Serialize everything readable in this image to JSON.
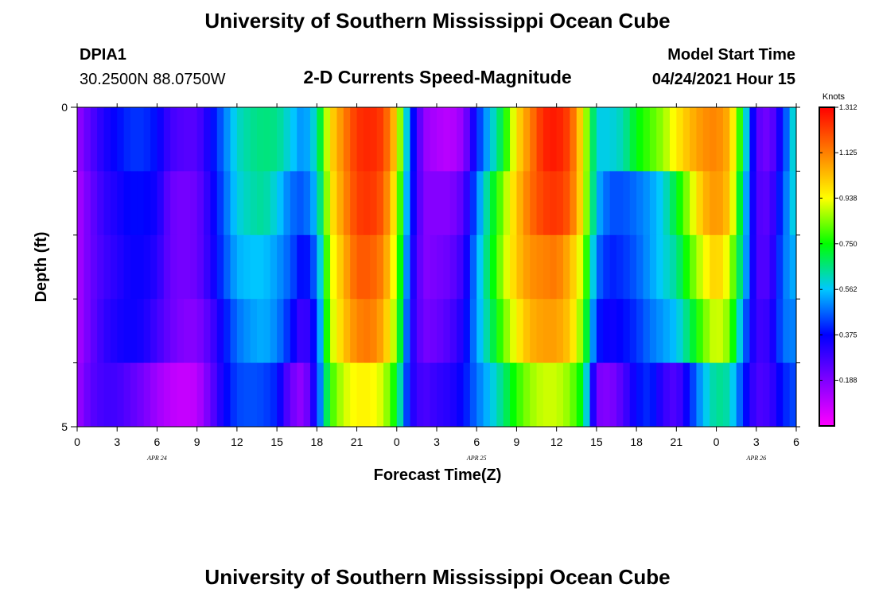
{
  "header": {
    "title": "University of Southern Mississippi Ocean Cube",
    "station": "DPIA1",
    "coords": "30.2500N  88.0750W",
    "model_start_label": "Model Start Time",
    "model_start_value": "04/24/2021 Hour 15"
  },
  "footer": {
    "title": "University of Southern Mississippi Ocean Cube"
  },
  "chart_data": {
    "type": "heatmap",
    "title": "2-D Currents Speed-Magnitude",
    "xlabel": "Forecast Time(Z)",
    "ylabel": "Depth (ft)",
    "x_tick_labels": [
      "0",
      "3",
      "6",
      "9",
      "12",
      "15",
      "18",
      "21",
      "0",
      "3",
      "6",
      "9",
      "12",
      "15",
      "18",
      "21",
      "0",
      "3",
      "6"
    ],
    "date_labels": [
      {
        "label": "APR 24",
        "tick_index": 2
      },
      {
        "label": "APR 25",
        "tick_index": 10
      },
      {
        "label": "APR 26",
        "tick_index": 17
      }
    ],
    "y_tick_labels": [
      "0",
      "5"
    ],
    "ylim": [
      0,
      5
    ],
    "xlim_hours": [
      0,
      54
    ],
    "colorbar": {
      "unit": "Knots",
      "min": 0,
      "max": 1.312,
      "tick_labels": [
        "1.312",
        "1.125",
        "0.938",
        "0.750",
        "0.562",
        "0.375",
        "0.188"
      ],
      "tick_values": [
        1.312,
        1.125,
        0.938,
        0.75,
        0.562,
        0.375,
        0.188
      ],
      "colors": [
        "#ff00ff",
        "#8000ff",
        "#0000ff",
        "#00c8ff",
        "#00ff00",
        "#ffff00",
        "#ff8000",
        "#ff0000"
      ]
    },
    "depth_rows": [
      0.5,
      1.5,
      2.5,
      3.5,
      4.5
    ],
    "hours": [
      0,
      1,
      2,
      3,
      4,
      5,
      6,
      7,
      8,
      9,
      10,
      11,
      12,
      13,
      14,
      15,
      16,
      17,
      18,
      19,
      20,
      21,
      22,
      23,
      24,
      25,
      26,
      27,
      28,
      29,
      30,
      31,
      32,
      33,
      34,
      35,
      36,
      37,
      38,
      39,
      40,
      41,
      42,
      43,
      44,
      45,
      46,
      47,
      48,
      49,
      50,
      51,
      52,
      53,
      54
    ],
    "values": [
      [
        0.15,
        0.25,
        0.33,
        0.38,
        0.42,
        0.42,
        0.38,
        0.28,
        0.25,
        0.25,
        0.36,
        0.48,
        0.6,
        0.64,
        0.66,
        0.65,
        0.58,
        0.5,
        0.62,
        0.98,
        1.12,
        1.24,
        1.26,
        1.22,
        0.99,
        0.45,
        0.16,
        0.12,
        0.1,
        0.16,
        0.4,
        0.56,
        0.72,
        0.98,
        1.12,
        1.26,
        1.28,
        1.21,
        0.95,
        0.58,
        0.58,
        0.62,
        0.74,
        0.8,
        0.86,
        0.96,
        1.04,
        1.1,
        1.12,
        1.05,
        0.7,
        0.25,
        0.2,
        0.4,
        0.65
      ],
      [
        0.12,
        0.22,
        0.3,
        0.34,
        0.38,
        0.38,
        0.35,
        0.22,
        0.2,
        0.22,
        0.33,
        0.46,
        0.58,
        0.62,
        0.64,
        0.58,
        0.48,
        0.45,
        0.56,
        0.95,
        1.1,
        1.22,
        1.24,
        1.18,
        0.92,
        0.42,
        0.18,
        0.18,
        0.18,
        0.25,
        0.48,
        0.68,
        0.85,
        1.02,
        1.15,
        1.22,
        1.24,
        1.18,
        0.95,
        0.55,
        0.45,
        0.45,
        0.48,
        0.52,
        0.58,
        0.72,
        0.88,
        1.04,
        1.1,
        1.02,
        0.62,
        0.26,
        0.24,
        0.45,
        0.62
      ],
      [
        0.12,
        0.22,
        0.28,
        0.32,
        0.36,
        0.36,
        0.32,
        0.22,
        0.2,
        0.22,
        0.32,
        0.44,
        0.54,
        0.56,
        0.56,
        0.52,
        0.46,
        0.36,
        0.48,
        0.9,
        1.05,
        1.18,
        1.18,
        1.12,
        0.88,
        0.38,
        0.18,
        0.2,
        0.22,
        0.3,
        0.52,
        0.7,
        0.88,
        1.02,
        1.1,
        1.12,
        1.14,
        1.05,
        0.88,
        0.48,
        0.4,
        0.42,
        0.46,
        0.52,
        0.58,
        0.64,
        0.8,
        0.92,
        1.02,
        0.9,
        0.6,
        0.26,
        0.26,
        0.48,
        0.55
      ],
      [
        0.12,
        0.22,
        0.3,
        0.34,
        0.36,
        0.34,
        0.28,
        0.22,
        0.18,
        0.18,
        0.26,
        0.38,
        0.48,
        0.52,
        0.54,
        0.5,
        0.4,
        0.26,
        0.42,
        0.88,
        1.02,
        1.12,
        1.14,
        1.06,
        0.84,
        0.35,
        0.2,
        0.22,
        0.26,
        0.34,
        0.52,
        0.66,
        0.82,
        0.95,
        1.05,
        1.08,
        1.08,
        1.02,
        0.82,
        0.4,
        0.35,
        0.38,
        0.42,
        0.48,
        0.52,
        0.56,
        0.68,
        0.82,
        0.92,
        0.84,
        0.5,
        0.28,
        0.3,
        0.48,
        0.5
      ],
      [
        0.14,
        0.24,
        0.28,
        0.28,
        0.24,
        0.2,
        0.14,
        0.1,
        0.08,
        0.1,
        0.22,
        0.36,
        0.44,
        0.45,
        0.44,
        0.4,
        0.22,
        0.15,
        0.4,
        0.78,
        0.9,
        0.95,
        0.95,
        0.9,
        0.72,
        0.34,
        0.26,
        0.3,
        0.32,
        0.38,
        0.48,
        0.56,
        0.66,
        0.78,
        0.86,
        0.9,
        0.9,
        0.85,
        0.72,
        0.2,
        0.18,
        0.26,
        0.38,
        0.42,
        0.3,
        0.25,
        0.4,
        0.55,
        0.65,
        0.62,
        0.42,
        0.26,
        0.28,
        0.4,
        0.45
      ]
    ]
  }
}
